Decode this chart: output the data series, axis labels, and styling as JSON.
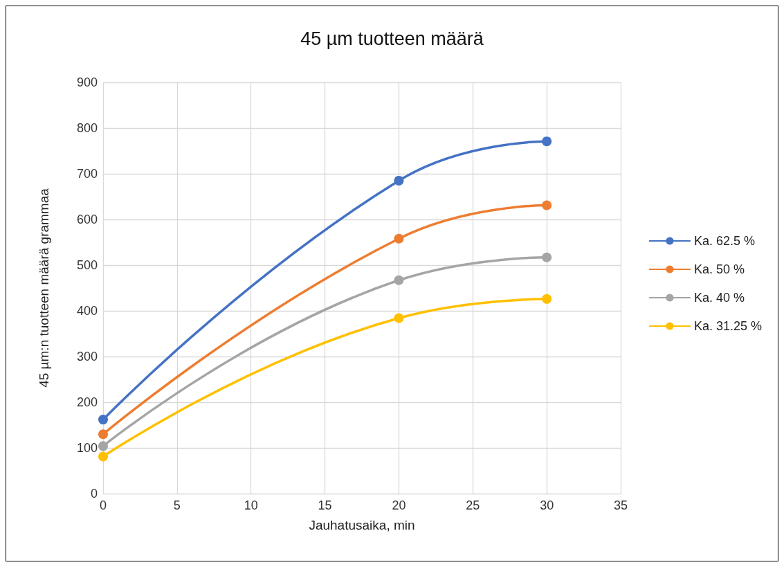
{
  "chart_data": {
    "type": "line",
    "title": "45 µm tuotteen määrä",
    "xlabel": "Jauhatusaika, min",
    "ylabel": "45 µm:n tuotteen määrä grammaa",
    "x": [
      0,
      20,
      30
    ],
    "series": [
      {
        "name": "Ka. 62.5 %",
        "color": "#4472c4",
        "values": [
          162,
          685,
          771
        ]
      },
      {
        "name": "Ka. 50 %",
        "color": "#ed7d31",
        "values": [
          130,
          558,
          631
        ]
      },
      {
        "name": "Ka. 40 %",
        "color": "#a5a5a5",
        "values": [
          104,
          467,
          517
        ]
      },
      {
        "name": "Ka. 31.25 %",
        "color": "#ffc000",
        "values": [
          81,
          384,
          426
        ]
      }
    ],
    "xlim": [
      0,
      35
    ],
    "xticks": [
      0,
      5,
      10,
      15,
      20,
      25,
      30,
      35
    ],
    "ylim": [
      0,
      900
    ],
    "yticks": [
      0,
      100,
      200,
      300,
      400,
      500,
      600,
      700,
      800,
      900
    ],
    "grid": true,
    "legend": "right",
    "marker": "circle",
    "line_style": "solid"
  }
}
